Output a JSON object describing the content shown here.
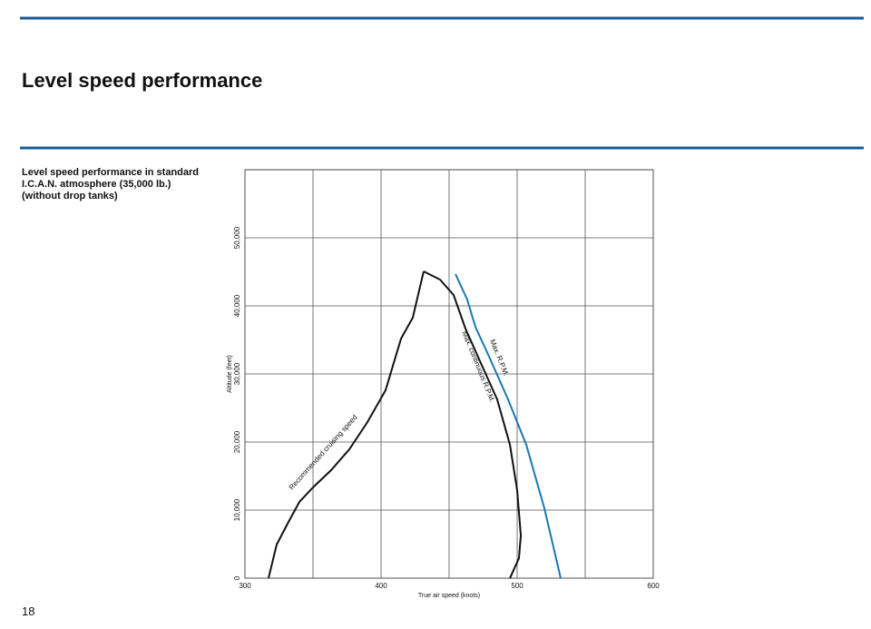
{
  "page": {
    "heading": "Level speed performance",
    "caption": [
      "Level speed performance in standard",
      "I.C.A.N. atmosphere (35,000 lb.)",
      "(without drop tanks)"
    ],
    "number": "18"
  },
  "chart_data": {
    "type": "line",
    "xlabel": "True air speed (knots)",
    "ylabel": "Altitude (feet)",
    "xlim": [
      300,
      600
    ],
    "xticks": [
      300,
      400,
      500,
      600
    ],
    "x_minor_ticks": [
      350,
      450,
      550
    ],
    "ylim": [
      0,
      60000
    ],
    "yticks": [
      0,
      {
        "value": 10000,
        "label": "10,000"
      },
      {
        "value": 20000,
        "label": "20,000"
      },
      {
        "value": 30000,
        "label": "30,000"
      },
      {
        "value": 40000,
        "label": "40,000"
      },
      {
        "value": 50000,
        "label": "50,000"
      }
    ],
    "grid": true,
    "series": [
      {
        "name": "Recommended cruising speed",
        "color": "#111111",
        "x": [
          317.3,
          323.3,
          332,
          340,
          350,
          363.3,
          376.7,
          390,
          403.3,
          414.7,
          423.3,
          431.3
        ],
        "values": [
          0,
          4933,
          8267,
          11200,
          13333,
          15867,
          18933,
          22933,
          27600,
          35200,
          38267,
          45067
        ]
      },
      {
        "name": "Max. continuous R.P.M.",
        "color": "#111111",
        "x": [
          431.3,
          443.3,
          453.3,
          462,
          473.3,
          485.3,
          494.7,
          500,
          502.7,
          501.3,
          494.7
        ],
        "values": [
          45067,
          43867,
          41600,
          36667,
          31600,
          26267,
          19600,
          12933,
          6267,
          2933,
          0
        ]
      },
      {
        "name": "Max. R.P.M.",
        "color": "#1a78b4",
        "x": [
          454.7,
          463.3,
          469.3,
          480,
          493.3,
          506.7,
          520,
          532
        ],
        "values": [
          44667,
          40933,
          36933,
          32267,
          26267,
          19600,
          10267,
          0
        ]
      }
    ]
  }
}
